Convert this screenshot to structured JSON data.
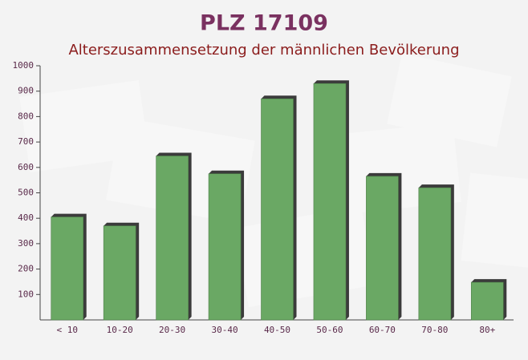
{
  "chart_data": {
    "type": "bar",
    "title": "PLZ 17109",
    "subtitle": "Alterszusammensetzung der männlichen Bevölkerung",
    "categories": [
      "< 10",
      "10-20",
      "20-30",
      "30-40",
      "40-50",
      "50-60",
      "60-70",
      "70-80",
      "80+"
    ],
    "values": [
      405,
      370,
      645,
      575,
      870,
      930,
      565,
      520,
      148
    ],
    "color": "#6aa864",
    "ylim": [
      0,
      1000
    ],
    "yticks": [
      100,
      200,
      300,
      400,
      500,
      600,
      700,
      800,
      900,
      1000
    ]
  }
}
